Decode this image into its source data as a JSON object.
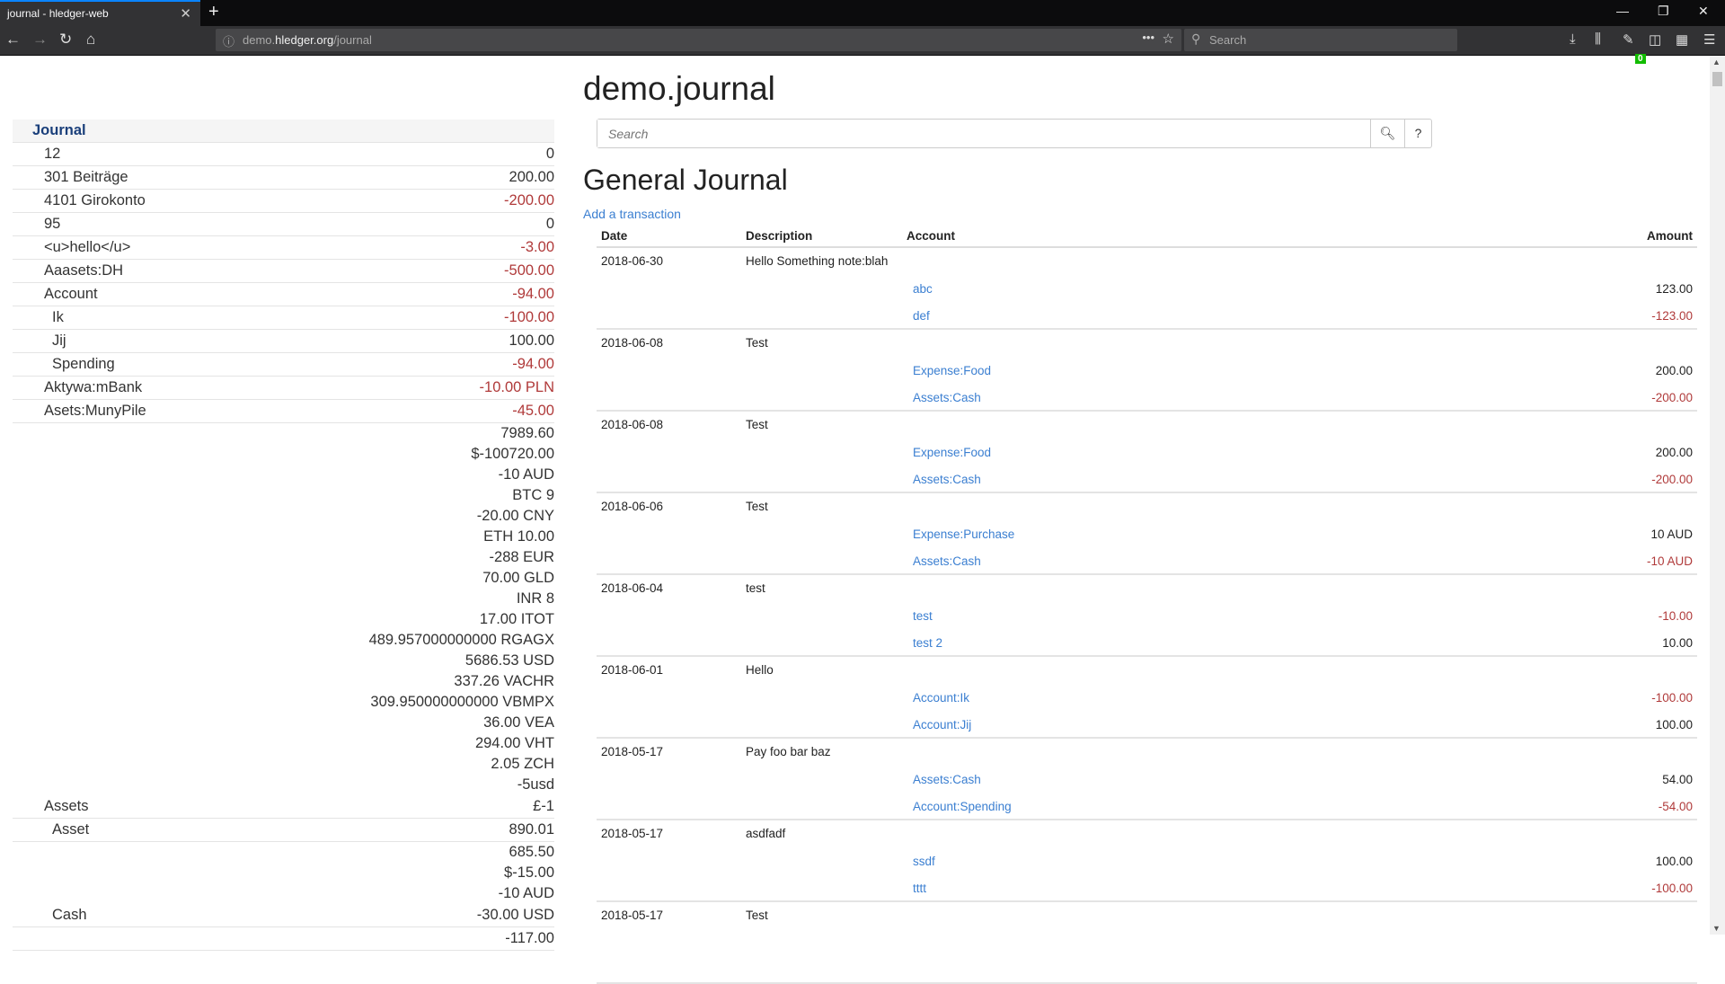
{
  "browser": {
    "tab_title": "journal - hledger-web",
    "url_host_prefix": "demo.",
    "url_host": "hledger.org",
    "url_path": "/journal",
    "search_placeholder": "Search",
    "addon_badge": "0"
  },
  "page": {
    "title": "demo.journal",
    "search_placeholder": "Search",
    "help_label": "?",
    "heading": "General Journal",
    "add_link": "Add a transaction"
  },
  "sidebar": {
    "header": "Journal",
    "rows": [
      {
        "name": "12",
        "amounts": [
          "0"
        ],
        "level": 1,
        "neg": false
      },
      {
        "name": "301 Beiträge",
        "amounts": [
          "200.00"
        ],
        "level": 1,
        "neg": false
      },
      {
        "name": "4101 Girokonto",
        "amounts": [
          "-200.00"
        ],
        "level": 1,
        "neg": true
      },
      {
        "name": "95",
        "amounts": [
          "0"
        ],
        "level": 1,
        "neg": false
      },
      {
        "name": "<u>hello</u>",
        "amounts": [
          "-3.00"
        ],
        "level": 1,
        "neg": true
      },
      {
        "name": "Aaasets:DH",
        "amounts": [
          "-500.00"
        ],
        "level": 1,
        "neg": true
      },
      {
        "name": "Account",
        "amounts": [
          "-94.00"
        ],
        "level": 1,
        "neg": true
      },
      {
        "name": "Ik",
        "amounts": [
          "-100.00"
        ],
        "level": 2,
        "neg": true
      },
      {
        "name": "Jij",
        "amounts": [
          "100.00"
        ],
        "level": 2,
        "neg": false
      },
      {
        "name": "Spending",
        "amounts": [
          "-94.00"
        ],
        "level": 2,
        "neg": true
      },
      {
        "name": "Aktywa:mBank",
        "amounts": [
          "-10.00 PLN"
        ],
        "level": 1,
        "neg": true
      },
      {
        "name": "Asets:MunyPile",
        "amounts": [
          "-45.00"
        ],
        "level": 1,
        "neg": true
      },
      {
        "name": "",
        "amounts": [
          "7989.60",
          "$-100720.00",
          "-10 AUD",
          "BTC 9",
          "-20.00 CNY",
          "ETH 10.00",
          "-288 EUR",
          "70.00 GLD",
          "INR 8",
          "17.00 ITOT",
          "489.957000000000 RGAGX",
          "5686.53 USD",
          "337.26 VACHR",
          "309.950000000000 VBMPX",
          "36.00 VEA",
          "294.00 VHT",
          "2.05 ZCH",
          "-5usd"
        ],
        "level": 1,
        "neg": false,
        "multi": true
      },
      {
        "name": "Assets",
        "amounts": [
          "£-1"
        ],
        "level": 1,
        "neg": false
      },
      {
        "name": "Asset",
        "amounts": [
          "890.01"
        ],
        "level": 2,
        "neg": false
      },
      {
        "name": "",
        "amounts": [
          "685.50",
          "$-15.00",
          "-10 AUD"
        ],
        "level": 2,
        "neg": false,
        "multi": true
      },
      {
        "name": "Cash",
        "amounts": [
          "-30.00 USD"
        ],
        "level": 2,
        "neg": false
      },
      {
        "name": "",
        "amounts": [
          "-117.00"
        ],
        "level": 2,
        "neg": false,
        "multi": true
      }
    ]
  },
  "journal": {
    "columns": [
      "Date",
      "Description",
      "Account",
      "Amount"
    ],
    "transactions": [
      {
        "date": "2018-06-30",
        "desc": "Hello Something note:blah",
        "postings": [
          {
            "account": "abc",
            "amount": "123.00",
            "neg": false
          },
          {
            "account": "def",
            "amount": "-123.00",
            "neg": true
          }
        ]
      },
      {
        "date": "2018-06-08",
        "desc": "Test",
        "postings": [
          {
            "account": "Expense:Food",
            "amount": "200.00",
            "neg": false
          },
          {
            "account": "Assets:Cash",
            "amount": "-200.00",
            "neg": true
          }
        ]
      },
      {
        "date": "2018-06-08",
        "desc": "Test",
        "postings": [
          {
            "account": "Expense:Food",
            "amount": "200.00",
            "neg": false
          },
          {
            "account": "Assets:Cash",
            "amount": "-200.00",
            "neg": true
          }
        ]
      },
      {
        "date": "2018-06-06",
        "desc": "Test",
        "postings": [
          {
            "account": "Expense:Purchase",
            "amount": "10 AUD",
            "neg": false
          },
          {
            "account": "Assets:Cash",
            "amount": "-10 AUD",
            "neg": true
          }
        ]
      },
      {
        "date": "2018-06-04",
        "desc": "test",
        "postings": [
          {
            "account": "test",
            "amount": "-10.00",
            "neg": true
          },
          {
            "account": "test 2",
            "amount": "10.00",
            "neg": false
          }
        ]
      },
      {
        "date": "2018-06-01",
        "desc": "Hello",
        "postings": [
          {
            "account": "Account:Ik",
            "amount": "-100.00",
            "neg": true
          },
          {
            "account": "Account:Jij",
            "amount": "100.00",
            "neg": false
          }
        ]
      },
      {
        "date": "2018-05-17",
        "desc": "Pay foo bar baz",
        "postings": [
          {
            "account": "Assets:Cash",
            "amount": "54.00",
            "neg": false
          },
          {
            "account": "Account:Spending",
            "amount": "-54.00",
            "neg": true
          }
        ]
      },
      {
        "date": "2018-05-17",
        "desc": "asdfadf",
        "postings": [
          {
            "account": "ssdf",
            "amount": "100.00",
            "neg": false
          },
          {
            "account": "tttt",
            "amount": "-100.00",
            "neg": true
          }
        ]
      },
      {
        "date": "2018-05-17",
        "desc": "Test",
        "postings": []
      }
    ]
  },
  "colors": {
    "link": "#3b7fd1",
    "negative": "#b03a3a",
    "sidebar_header": "#1a3f7a"
  }
}
